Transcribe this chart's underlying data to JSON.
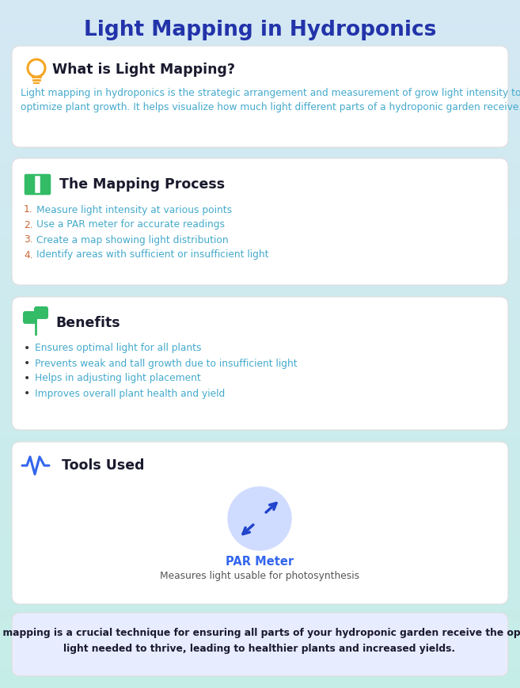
{
  "title": "Light Mapping in Hydroponics",
  "title_color": "#2233AA",
  "bg_top": "#D4E8F4",
  "bg_bottom": "#C5EDE7",
  "card_bg": "#FFFFFF",
  "section1_icon_color": "#F5A623",
  "section1_title": "What is Light Mapping?",
  "section1_title_color": "#1a1a2e",
  "section1_body_line1": "Light mapping in hydroponics is the strategic arrangement and measurement of grow light intensity to",
  "section1_body_line2": "optimize plant growth. It helps visualize how much light different parts of a hydroponic garden receive.",
  "section1_body_color": "#44AACC",
  "section2_icon_color": "#33BB66",
  "section2_title": "The Mapping Process",
  "section2_title_color": "#1a1a2e",
  "section2_items": [
    "Measure light intensity at various points",
    "Use a PAR meter for accurate readings",
    "Create a map showing light distribution",
    "Identify areas with sufficient or insufficient light"
  ],
  "section2_items_color": "#44AACC",
  "section2_numbers_color": "#CC6633",
  "section3_icon_color": "#33BB66",
  "section3_title": "Benefits",
  "section3_title_color": "#1a1a2e",
  "section3_items": [
    "Ensures optimal light for all plants",
    "Prevents weak and tall growth due to insufficient light",
    "Helps in adjusting light placement",
    "Improves overall plant health and yield"
  ],
  "section3_items_color": "#44AACC",
  "section3_bullet_color": "#333333",
  "section4_icon_color": "#3366EE",
  "section4_title": "Tools Used",
  "section4_title_color": "#1a1a2e",
  "section4_tool_name": "PAR Meter",
  "section4_tool_name_color": "#3366EE",
  "section4_tool_desc": "Measures light usable for photosynthesis",
  "section4_tool_desc_color": "#555555",
  "section4_circle_color": "#D0DCFF",
  "section4_arrow_color": "#2244CC",
  "footer_bg": "#E8ECFF",
  "footer_line1": "Light mapping is a crucial technique for ensuring all parts of your hydroponic garden receive the optimal",
  "footer_line2": "light needed to thrive, leading to healthier plants and increased yields.",
  "footer_text_color": "#1a1a2e"
}
